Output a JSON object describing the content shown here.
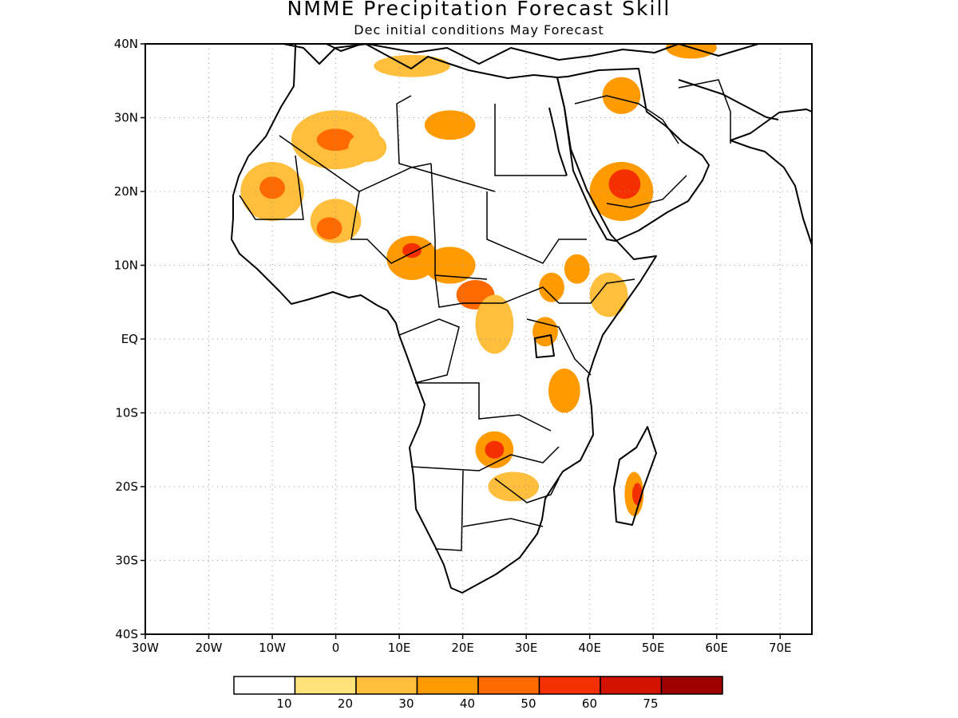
{
  "title": "NMME Precipitation Forecast Skill",
  "subtitle": "Dec initial conditions  May Forecast",
  "map": {
    "lon_range": [
      -30,
      75
    ],
    "lat_range": [
      -40,
      40
    ],
    "grid": true,
    "y_ticks": [
      {
        "value": 40,
        "label": "40N"
      },
      {
        "value": 30,
        "label": "30N"
      },
      {
        "value": 20,
        "label": "20N"
      },
      {
        "value": 10,
        "label": "10N"
      },
      {
        "value": 0,
        "label": "EQ"
      },
      {
        "value": -10,
        "label": "10S"
      },
      {
        "value": -20,
        "label": "20S"
      },
      {
        "value": -30,
        "label": "30S"
      },
      {
        "value": -40,
        "label": "40S"
      }
    ],
    "x_ticks": [
      {
        "value": -30,
        "label": "30W"
      },
      {
        "value": -20,
        "label": "20W"
      },
      {
        "value": -10,
        "label": "10W"
      },
      {
        "value": 0,
        "label": "0"
      },
      {
        "value": 10,
        "label": "10E"
      },
      {
        "value": 20,
        "label": "20E"
      },
      {
        "value": 30,
        "label": "30E"
      },
      {
        "value": 40,
        "label": "40E"
      },
      {
        "value": 50,
        "label": "50E"
      },
      {
        "value": 60,
        "label": "60E"
      },
      {
        "value": 70,
        "label": "70E"
      }
    ]
  },
  "legend": {
    "colors": [
      "#ffffff",
      "#ffe27a",
      "#ffbe3c",
      "#ff9a00",
      "#ff6a00",
      "#f52f00",
      "#d41200",
      "#9e0000"
    ],
    "labels": [
      "10",
      "20",
      "30",
      "40",
      "50",
      "60",
      "75"
    ]
  },
  "skill_regions": [
    {
      "lon": -10,
      "lat": 20,
      "rlon": 5,
      "rlat": 4,
      "level": 2
    },
    {
      "lon": -10,
      "lat": 20.5,
      "rlon": 2,
      "rlat": 1.5,
      "level": 4
    },
    {
      "lon": 0,
      "lat": 27,
      "rlon": 7,
      "rlat": 4,
      "level": 2
    },
    {
      "lon": 0,
      "lat": 27,
      "rlon": 3,
      "rlat": 1.5,
      "level": 4
    },
    {
      "lon": 5,
      "lat": 26,
      "rlon": 3,
      "rlat": 2,
      "level": 2
    },
    {
      "lon": 0,
      "lat": 16,
      "rlon": 4,
      "rlat": 3,
      "level": 2
    },
    {
      "lon": -1,
      "lat": 15,
      "rlon": 2,
      "rlat": 1.5,
      "level": 4
    },
    {
      "lon": 18,
      "lat": 29,
      "rlon": 4,
      "rlat": 2,
      "level": 3
    },
    {
      "lon": 12,
      "lat": 11,
      "rlon": 4,
      "rlat": 3,
      "level": 3
    },
    {
      "lon": 12,
      "lat": 12,
      "rlon": 1.5,
      "rlat": 1,
      "level": 5
    },
    {
      "lon": 18,
      "lat": 10,
      "rlon": 4,
      "rlat": 2.5,
      "level": 3
    },
    {
      "lon": 22,
      "lat": 6,
      "rlon": 3,
      "rlat": 2,
      "level": 4
    },
    {
      "lon": 25,
      "lat": 2,
      "rlon": 3,
      "rlat": 4,
      "level": 2
    },
    {
      "lon": 34,
      "lat": 7,
      "rlon": 2,
      "rlat": 2,
      "level": 3
    },
    {
      "lon": 33,
      "lat": 1,
      "rlon": 2,
      "rlat": 2,
      "level": 3
    },
    {
      "lon": 38,
      "lat": 9.5,
      "rlon": 2,
      "rlat": 2,
      "level": 3
    },
    {
      "lon": 43,
      "lat": 6,
      "rlon": 3,
      "rlat": 3,
      "level": 2
    },
    {
      "lon": 45,
      "lat": 20,
      "rlon": 5,
      "rlat": 4,
      "level": 3
    },
    {
      "lon": 45.5,
      "lat": 21,
      "rlon": 2.5,
      "rlat": 2,
      "level": 5
    },
    {
      "lon": 45,
      "lat": 33,
      "rlon": 3,
      "rlat": 2.5,
      "level": 3
    },
    {
      "lon": 56,
      "lat": 39.5,
      "rlon": 4,
      "rlat": 1.5,
      "level": 3
    },
    {
      "lon": 36,
      "lat": -7,
      "rlon": 2.5,
      "rlat": 3,
      "level": 3
    },
    {
      "lon": 25,
      "lat": -15,
      "rlon": 3,
      "rlat": 2.5,
      "level": 3
    },
    {
      "lon": 25,
      "lat": -15,
      "rlon": 1.5,
      "rlat": 1.2,
      "level": 5
    },
    {
      "lon": 28,
      "lat": -20,
      "rlon": 4,
      "rlat": 2,
      "level": 2
    },
    {
      "lon": 47,
      "lat": -21,
      "rlon": 1.5,
      "rlat": 3,
      "level": 3
    },
    {
      "lon": 47.5,
      "lat": -21,
      "rlon": 0.8,
      "rlat": 1.5,
      "level": 5
    },
    {
      "lon": 12,
      "lat": 37,
      "rlon": 6,
      "rlat": 1.5,
      "level": 2
    }
  ]
}
